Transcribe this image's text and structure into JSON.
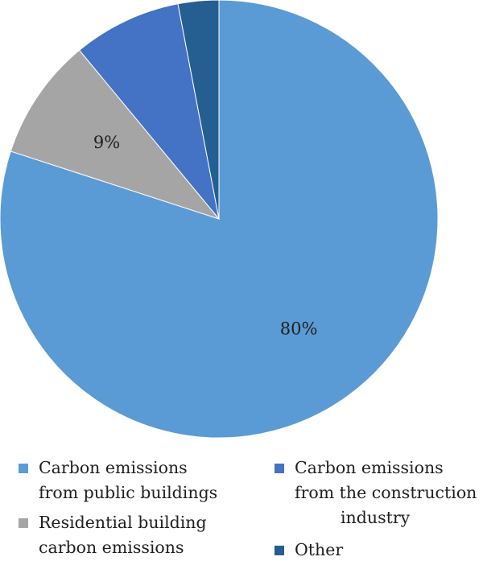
{
  "chart_data": {
    "type": "pie",
    "start_angle_deg": 0,
    "direction": "clockwise",
    "slices": [
      {
        "name": "Carbon emissions from public buildings",
        "value": 80,
        "label": "80%",
        "color": "#5b9bd5"
      },
      {
        "name": "Residential building carbon emissions",
        "value": 9,
        "label": "9%",
        "color": "#a5a5a5"
      },
      {
        "name": "Carbon emissions from the construction industry",
        "value": 8,
        "label": "",
        "color": "#4472c4"
      },
      {
        "name": "Other",
        "value": 3,
        "label": "",
        "color": "#255e91"
      }
    ],
    "legend_placement": "bottom"
  },
  "legend": {
    "items": [
      {
        "line1": "Carbon emissions",
        "line2": "from public buildings",
        "color": "#5b9bd5"
      },
      {
        "line1": "Residential building",
        "line2": "carbon emissions",
        "color": "#a5a5a5"
      },
      {
        "line1": "Carbon emissions",
        "line2": "from the construction",
        "line3": "industry",
        "color": "#4472c4"
      },
      {
        "line1": "Other",
        "color": "#255e91"
      }
    ]
  }
}
